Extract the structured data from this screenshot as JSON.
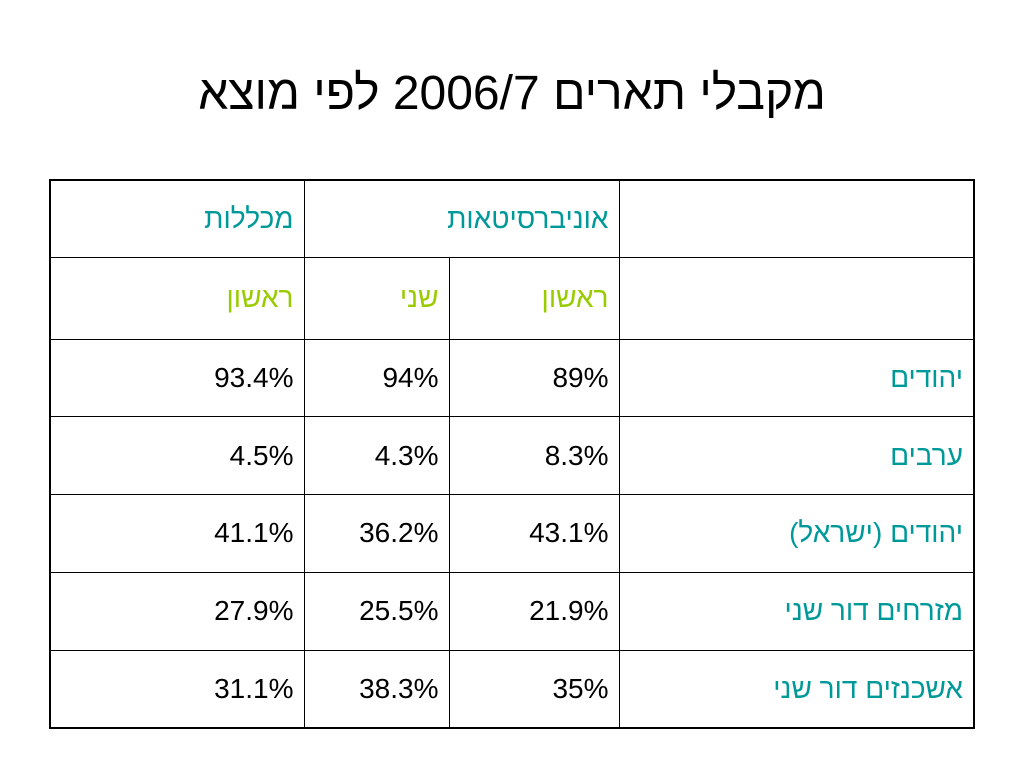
{
  "title": "מקבלי תארים 2006/7 לפי מוצא",
  "colors": {
    "header_group": "#009999",
    "header_sub": "#99cc00",
    "row_label": "#009999",
    "value": "#000000"
  },
  "table": {
    "group_headers": {
      "universities": "אוניברסיטאות",
      "colleges": "מכללות"
    },
    "sub_headers": {
      "uni_first": "ראשון",
      "uni_second": "שני",
      "col_first": "ראשון"
    },
    "rows": [
      {
        "label": "יהודים",
        "uni_first": "89%",
        "uni_second": "94%",
        "col_first": "93.4%"
      },
      {
        "label": "ערבים",
        "uni_first": "8.3%",
        "uni_second": "4.3%",
        "col_first": "4.5%"
      },
      {
        "label": "יהודים (ישראל)",
        "uni_first": "43.1%",
        "uni_second": "36.2%",
        "col_first": "41.1%"
      },
      {
        "label": "מזרחים דור שני",
        "uni_first": "21.9%",
        "uni_second": "25.5%",
        "col_first": "27.9%"
      },
      {
        "label": "אשכנזים דור שני",
        "uni_first": "35%",
        "uni_second": "38.3%",
        "col_first": "31.1%"
      }
    ]
  }
}
